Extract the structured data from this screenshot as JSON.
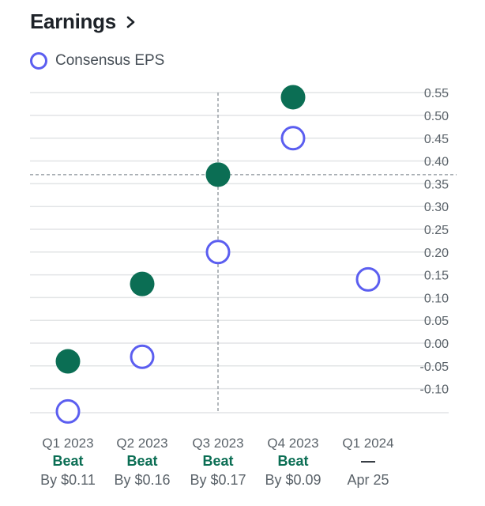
{
  "header": {
    "title": "Earnings"
  },
  "legend": {
    "consensus_label": "Consensus EPS"
  },
  "colors": {
    "actual": "#0b6e54",
    "consensus": "#5b5ef0",
    "beat": "#0b6e54",
    "grid": "#e2e4e6"
  },
  "chart_data": {
    "type": "scatter",
    "title": "Earnings",
    "ylim": [
      -0.15,
      0.57
    ],
    "yticks": [
      "0.55",
      "0.50",
      "0.45",
      "0.40",
      "0.35",
      "0.30",
      "0.25",
      "0.20",
      "0.15",
      "0.10",
      "0.05",
      "0.00",
      "-0.05",
      "-0.10"
    ],
    "grid": true,
    "legend_position": "top-left",
    "categories": [
      "Q1 2023",
      "Q2 2023",
      "Q3 2023",
      "Q4 2023",
      "Q1 2024"
    ],
    "status": [
      "Beat",
      "Beat",
      "Beat",
      "Beat",
      "—"
    ],
    "detail": [
      "By $0.11",
      "By $0.16",
      "By $0.17",
      "By $0.09",
      "Apr 25"
    ],
    "series": [
      {
        "name": "",
        "style": "filled",
        "values": [
          -0.04,
          0.13,
          0.37,
          0.54,
          null
        ]
      },
      {
        "name": "Consensus EPS",
        "style": "hollow",
        "values": [
          -0.15,
          -0.03,
          0.2,
          0.45,
          0.14
        ]
      }
    ],
    "highlight": {
      "category": "Q3 2023",
      "value": 0.37
    }
  }
}
